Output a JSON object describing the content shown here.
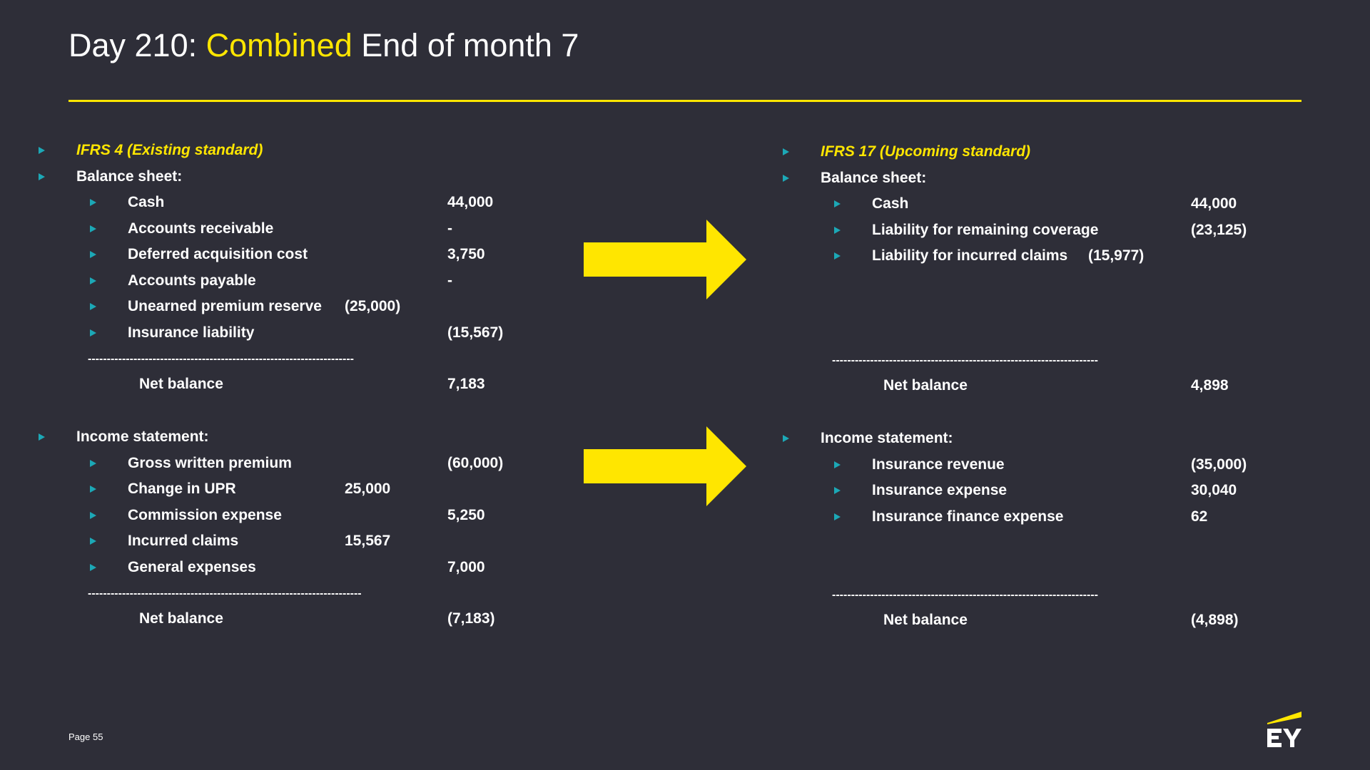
{
  "title": {
    "prefix": "Day 210: ",
    "highlight": "Combined",
    "suffix": " End of month 7"
  },
  "left": {
    "heading": "IFRS 4 (Existing standard)",
    "balance_sheet": {
      "label": "Balance sheet:",
      "items": [
        {
          "label": "Cash",
          "value": "44,000"
        },
        {
          "label": "Accounts receivable",
          "value": "-"
        },
        {
          "label": "Deferred acquisition cost",
          "value": "3,750"
        },
        {
          "label": "Accounts payable",
          "value": "-"
        },
        {
          "label": "Unearned premium reserve",
          "value": "(25,000)"
        },
        {
          "label": "Insurance liability",
          "value": "(15,567)"
        }
      ],
      "separator": "----------------------------------------------------------------------",
      "net_label": "Net balance",
      "net_value": "7,183"
    },
    "income_statement": {
      "label": "Income statement:",
      "items": [
        {
          "label": "Gross written premium",
          "value": "(60,000)"
        },
        {
          "label": "Change in UPR",
          "value": "25,000"
        },
        {
          "label": "Commission expense",
          "value": "5,250"
        },
        {
          "label": "Incurred claims",
          "value": "15,567"
        },
        {
          "label": "General expenses",
          "value": "7,000"
        }
      ],
      "separator": "------------------------------------------------------------------------",
      "net_label": "Net balance",
      "net_value": "(7,183)"
    }
  },
  "right": {
    "heading": "IFRS 17 (Upcoming standard)",
    "balance_sheet": {
      "label": "Balance sheet:",
      "items": [
        {
          "label": "Cash",
          "value": "44,000"
        },
        {
          "label": "Liability for remaining coverage",
          "value": "(23,125)"
        },
        {
          "label": "Liability for incurred claims",
          "value": "(15,977)"
        }
      ],
      "separator": "----------------------------------------------------------------------",
      "net_label": "Net balance",
      "net_value": "4,898"
    },
    "income_statement": {
      "label": "Income statement:",
      "items": [
        {
          "label": "Insurance revenue",
          "value": "(35,000)"
        },
        {
          "label": "Insurance expense",
          "value": "30,040"
        },
        {
          "label": "Insurance finance expense",
          "value": "62"
        }
      ],
      "separator": "----------------------------------------------------------------------",
      "net_label": "Net balance",
      "net_value": "(4,898)"
    }
  },
  "footer": {
    "page": "Page 55",
    "logo": "EY"
  },
  "colors": {
    "background": "#2e2e38",
    "accent": "#ffe600",
    "bullet": "#1ca8b6"
  }
}
